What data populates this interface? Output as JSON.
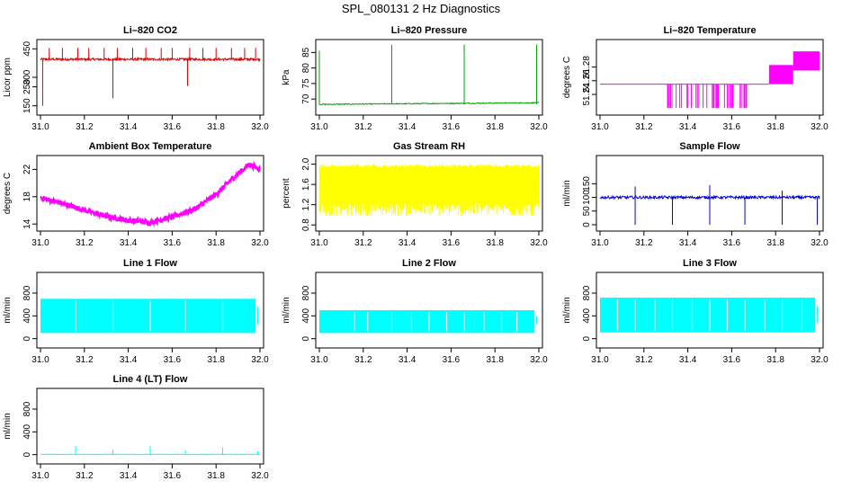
{
  "suptitle": "SPL_080131  2 Hz Diagnostics",
  "colors": {
    "red": "#e00000",
    "green": "#00a000",
    "magenta": "#ff00ff",
    "yellow": "#ffff00",
    "blue": "#0000dd",
    "cyan": "#00ffff",
    "axis": "#000000"
  },
  "chart_data": [
    {
      "id": "co2",
      "type": "line",
      "title": "Li–820 CO2",
      "ylabel": "Licor ppm",
      "color": "red",
      "xlim": [
        31.0,
        32.0
      ],
      "ylim": [
        120,
        480
      ],
      "xticks": [
        "31.0",
        "31.2",
        "31.4",
        "31.6",
        "31.8",
        "32.0"
      ],
      "yticks": [
        {
          "v": 150,
          "label": "150"
        },
        {
          "v": 250,
          "label": "250"
        },
        {
          "v": 300,
          "label": "300"
        },
        {
          "v": 450,
          "label": "450"
        }
      ],
      "series": {
        "baseline": 395,
        "noise": 6,
        "spikes_up": [
          31.04,
          31.1,
          31.17,
          31.22,
          31.29,
          31.35,
          31.42,
          31.48,
          31.55,
          31.6,
          31.68,
          31.74,
          31.8,
          31.87,
          31.93,
          31.98
        ],
        "spike_up_to": 455,
        "spikes_down": [
          [
            31.01,
            150
          ],
          [
            31.33,
            190
          ],
          [
            31.67,
            255
          ]
        ]
      }
    },
    {
      "id": "pressure",
      "type": "line",
      "title": "Li–820 Pressure",
      "ylabel": "kPa",
      "color": "green",
      "xlim": [
        31.0,
        32.0
      ],
      "ylim": [
        66,
        88
      ],
      "xticks": [
        "31.0",
        "31.2",
        "31.4",
        "31.6",
        "31.8",
        "32.0"
      ],
      "yticks": [
        {
          "v": 70,
          "label": "70"
        },
        {
          "v": 75,
          "label": "75"
        },
        {
          "v": 80,
          "label": "80"
        },
        {
          "v": 85,
          "label": "85"
        }
      ],
      "series": {
        "baseline_start": 68.3,
        "baseline_end": 68.8,
        "noise": 0.15,
        "spikes_up": [
          [
            31.0,
            85.5
          ],
          [
            31.33,
            87.5
          ],
          [
            31.66,
            87.5
          ],
          [
            31.99,
            87.5
          ]
        ]
      }
    },
    {
      "id": "temperature",
      "type": "line",
      "title": "Li–820 Temperature",
      "ylabel": "degrees C",
      "color": "magenta",
      "xlim": [
        31.0,
        32.0
      ],
      "ylim": [
        51.215,
        51.315
      ],
      "xticks": [
        "31.0",
        "31.2",
        "31.4",
        "31.6",
        "31.8",
        "32.0"
      ],
      "yticks": [
        {
          "v": 51.24,
          "label": "51.24"
        },
        {
          "v": 51.26,
          "label": "51.26"
        },
        {
          "v": 51.28,
          "label": "51.28"
        }
      ],
      "series": {
        "levels": [
          [
            31.0,
            31.77,
            51.255
          ],
          [
            31.77,
            31.88,
            51.275
          ],
          [
            31.88,
            32.0,
            51.295
          ]
        ],
        "drop_to": 51.22,
        "drop_region": [
          31.29,
          31.68
        ]
      }
    },
    {
      "id": "boxtemp",
      "type": "line",
      "title": "Ambient Box Temperature",
      "ylabel": "degrees C",
      "color": "magenta",
      "xlim": [
        31.0,
        32.0
      ],
      "ylim": [
        13.5,
        23.5
      ],
      "xticks": [
        "31.0",
        "31.2",
        "31.4",
        "31.6",
        "31.8",
        "32.0"
      ],
      "yticks": [
        {
          "v": 14,
          "label": "14"
        },
        {
          "v": 18,
          "label": "18"
        },
        {
          "v": 22,
          "label": "22"
        }
      ],
      "series": {
        "points": [
          [
            31.0,
            18.0
          ],
          [
            31.1,
            17.2
          ],
          [
            31.2,
            16.2
          ],
          [
            31.3,
            15.3
          ],
          [
            31.4,
            14.7
          ],
          [
            31.5,
            14.4
          ],
          [
            31.6,
            15.2
          ],
          [
            31.7,
            16.3
          ],
          [
            31.8,
            18.5
          ],
          [
            31.88,
            21.0
          ],
          [
            31.95,
            22.9
          ],
          [
            32.0,
            22.2
          ]
        ],
        "band": 0.8
      }
    },
    {
      "id": "rh",
      "type": "line",
      "title": "Gas Stream RH",
      "ylabel": "percent",
      "color": "yellow",
      "xlim": [
        31.0,
        32.0
      ],
      "ylim": [
        0.75,
        2.1
      ],
      "xticks": [
        "31.0",
        "31.2",
        "31.4",
        "31.6",
        "31.8",
        "32.0"
      ],
      "yticks": [
        {
          "v": 0.8,
          "label": "0.8"
        },
        {
          "v": 1.2,
          "label": "1.2"
        },
        {
          "v": 1.6,
          "label": "1.6"
        },
        {
          "v": 2.0,
          "label": "2.0"
        }
      ],
      "series": {
        "low": 1.05,
        "high": 2.0,
        "floor": 0.9
      }
    },
    {
      "id": "sample",
      "type": "line",
      "title": "Sample Flow",
      "ylabel": "ml/min",
      "color": "blue",
      "xlim": [
        31.0,
        32.0
      ],
      "ylim": [
        -10,
        240
      ],
      "xticks": [
        "31.0",
        "31.2",
        "31.4",
        "31.6",
        "31.8",
        "32.0"
      ],
      "yticks": [
        {
          "v": 0,
          "label": "0"
        },
        {
          "v": 50,
          "label": "50"
        },
        {
          "v": 100,
          "label": "100"
        },
        {
          "v": 150,
          "label": "150"
        }
      ],
      "series": {
        "baseline": 100,
        "noise": 5,
        "dips": [
          31.16,
          31.33,
          31.5,
          31.66,
          31.83,
          31.99
        ],
        "peaks": [
          [
            31.16,
            140
          ],
          [
            31.5,
            145
          ],
          [
            31.83,
            125
          ]
        ]
      }
    },
    {
      "id": "line1",
      "type": "line",
      "title": "Line 1 Flow",
      "ylabel": "ml/min",
      "color": "cyan",
      "xlim": [
        31.0,
        32.0
      ],
      "ylim": [
        -100,
        1100
      ],
      "xticks": [
        "31.0",
        "31.2",
        "31.4",
        "31.6",
        "31.8",
        "32.0"
      ],
      "yticks": [
        {
          "v": 0,
          "label": "0"
        },
        {
          "v": 400,
          "label": "400"
        },
        {
          "v": 800,
          "label": "800"
        }
      ],
      "series": {
        "low": 100,
        "high": 700,
        "gaps": [
          31.16,
          31.33,
          31.5,
          31.66,
          31.83
        ]
      }
    },
    {
      "id": "line2",
      "type": "line",
      "title": "Line 2 Flow",
      "ylabel": "ml/min",
      "color": "cyan",
      "xlim": [
        31.0,
        32.0
      ],
      "ylim": [
        -100,
        1100
      ],
      "xticks": [
        "31.0",
        "31.2",
        "31.4",
        "31.6",
        "31.8",
        "32.0"
      ],
      "yticks": [
        {
          "v": 0,
          "label": "0"
        },
        {
          "v": 400,
          "label": "400"
        },
        {
          "v": 800,
          "label": "800"
        }
      ],
      "series": {
        "low": 100,
        "high": 500,
        "gaps": [
          31.16,
          31.22,
          31.33,
          31.42,
          31.5,
          31.58,
          31.66,
          31.75,
          31.83,
          31.9
        ]
      }
    },
    {
      "id": "line3",
      "type": "line",
      "title": "Line 3 Flow",
      "ylabel": "ml/min",
      "color": "cyan",
      "xlim": [
        31.0,
        32.0
      ],
      "ylim": [
        -100,
        1100
      ],
      "xticks": [
        "31.0",
        "31.2",
        "31.4",
        "31.6",
        "31.8",
        "32.0"
      ],
      "yticks": [
        {
          "v": 0,
          "label": "0"
        },
        {
          "v": 400,
          "label": "400"
        },
        {
          "v": 800,
          "label": "800"
        }
      ],
      "series": {
        "low": 110,
        "high": 720,
        "gaps": [
          31.08,
          31.16,
          31.25,
          31.33,
          31.42,
          31.5,
          31.58,
          31.66,
          31.75,
          31.83,
          31.92
        ]
      }
    },
    {
      "id": "line4",
      "type": "line",
      "title": "Line 4 (LT) Flow",
      "ylabel": "ml/min",
      "color": "cyan",
      "xlim": [
        31.0,
        32.0
      ],
      "ylim": [
        -100,
        1100
      ],
      "xticks": [
        "31.0",
        "31.2",
        "31.4",
        "31.6",
        "31.8",
        "32.0"
      ],
      "yticks": [
        {
          "v": 0,
          "label": "0"
        },
        {
          "v": 400,
          "label": "400"
        },
        {
          "v": 800,
          "label": "800"
        }
      ],
      "series": {
        "baseline": 5,
        "noise": 4,
        "spikes_up": [
          [
            31.16,
            150
          ],
          [
            31.33,
            90
          ],
          [
            31.5,
            150
          ],
          [
            31.66,
            80
          ],
          [
            31.83,
            130
          ],
          [
            31.99,
            60
          ]
        ]
      }
    }
  ]
}
